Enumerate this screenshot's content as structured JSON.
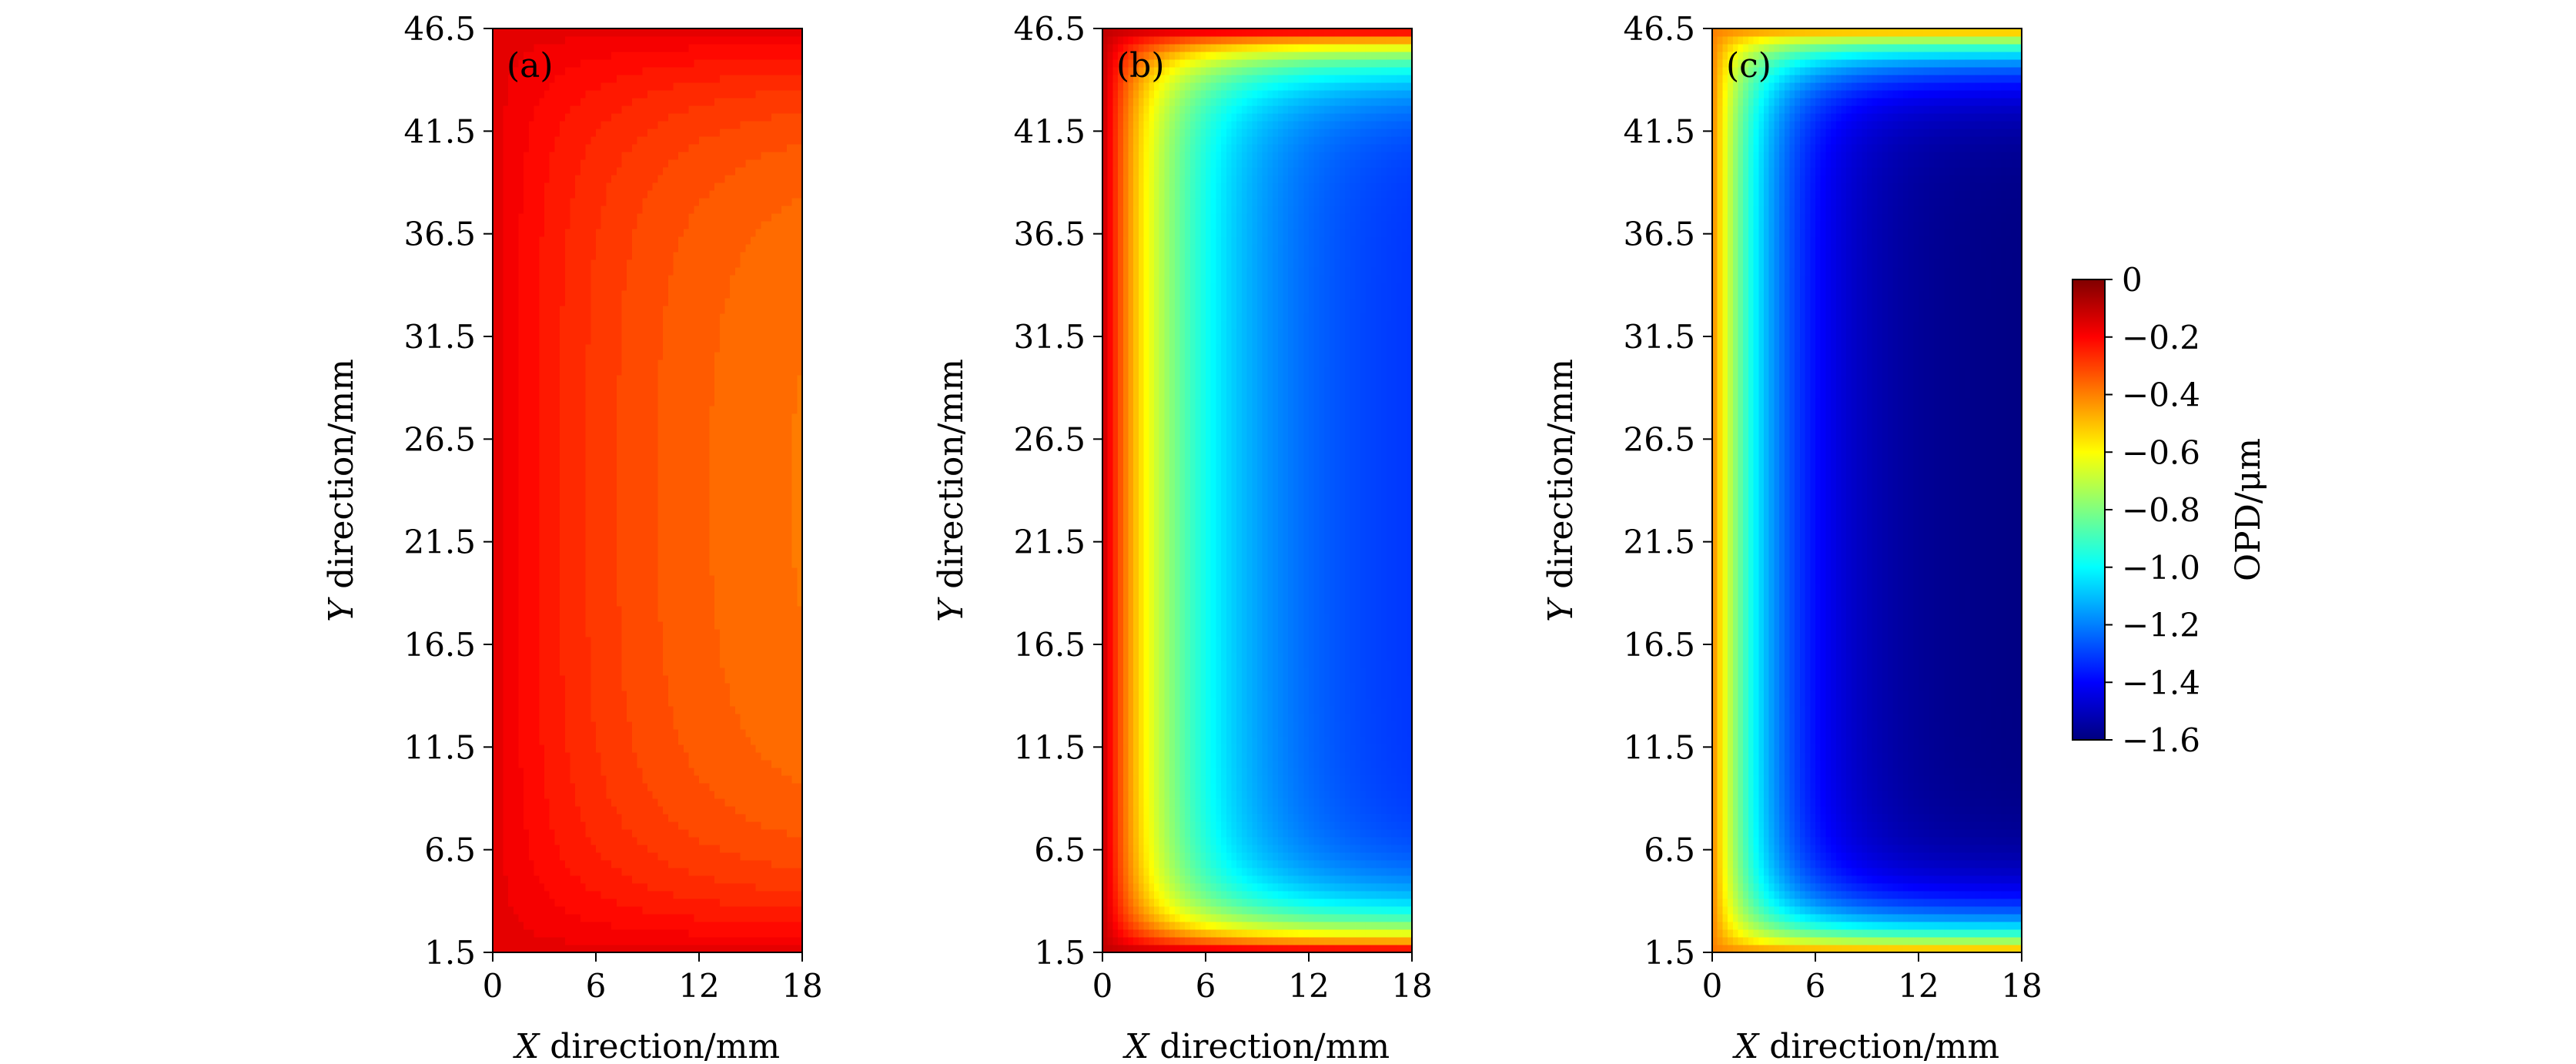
{
  "chart_data": [
    {
      "type": "heatmap",
      "panel_label": "(a)",
      "xlabel_var": "X",
      "xlabel_rest": " direction/mm",
      "ylabel_var": "Y",
      "ylabel_rest": " direction/mm",
      "xlim": [
        0,
        18
      ],
      "ylim": [
        1.5,
        46.5
      ],
      "xticks": [
        "0",
        "6",
        "12",
        "18"
      ],
      "yticks": [
        "1.5",
        "6.5",
        "11.5",
        "16.5",
        "21.5",
        "26.5",
        "31.5",
        "36.5",
        "41.5",
        "46.5"
      ],
      "field": {
        "edge_value": -0.16,
        "far_value": -0.42,
        "x_decay_mm": 9.0,
        "y_edge_mm": 4.0,
        "levels": 10
      }
    },
    {
      "type": "heatmap",
      "panel_label": "(b)",
      "xlabel_var": "X",
      "xlabel_rest": " direction/mm",
      "ylabel_var": "Y",
      "ylabel_rest": " direction/mm",
      "xlim": [
        0,
        18
      ],
      "ylim": [
        1.5,
        46.5
      ],
      "xticks": [
        "0",
        "6",
        "12",
        "18"
      ],
      "yticks": [
        "1.5",
        "6.5",
        "11.5",
        "16.5",
        "21.5",
        "26.5",
        "31.5",
        "36.5",
        "41.5",
        "46.5"
      ],
      "field": {
        "edge_value": -0.1,
        "far_value": -1.35,
        "x_decay_mm": 5.0,
        "y_edge_mm": 1.6,
        "levels": 0
      }
    },
    {
      "type": "heatmap",
      "panel_label": "(c)",
      "xlabel_var": "X",
      "xlabel_rest": " direction/mm",
      "ylabel_var": "Y",
      "ylabel_rest": " direction/mm",
      "xlim": [
        0,
        18
      ],
      "ylim": [
        1.5,
        46.5
      ],
      "xticks": [
        "0",
        "6",
        "12",
        "18"
      ],
      "yticks": [
        "1.5",
        "6.5",
        "11.5",
        "16.5",
        "21.5",
        "26.5",
        "31.5",
        "36.5",
        "41.5",
        "46.5"
      ],
      "field": {
        "edge_value": -0.4,
        "far_value": -1.6,
        "x_decay_mm": 3.5,
        "y_edge_mm": 1.6,
        "levels": 0
      }
    }
  ],
  "colorbar": {
    "label": "OPD/μm",
    "min": -1.6,
    "max": 0,
    "ticks": [
      "0",
      "−0.2",
      "−0.4",
      "−0.6",
      "−0.8",
      "−1.0",
      "−1.2",
      "−1.4",
      "−1.6"
    ],
    "tick_values": [
      0,
      -0.2,
      -0.4,
      -0.6,
      -0.8,
      -1.0,
      -1.2,
      -1.4,
      -1.6
    ],
    "colormap": "jet"
  }
}
